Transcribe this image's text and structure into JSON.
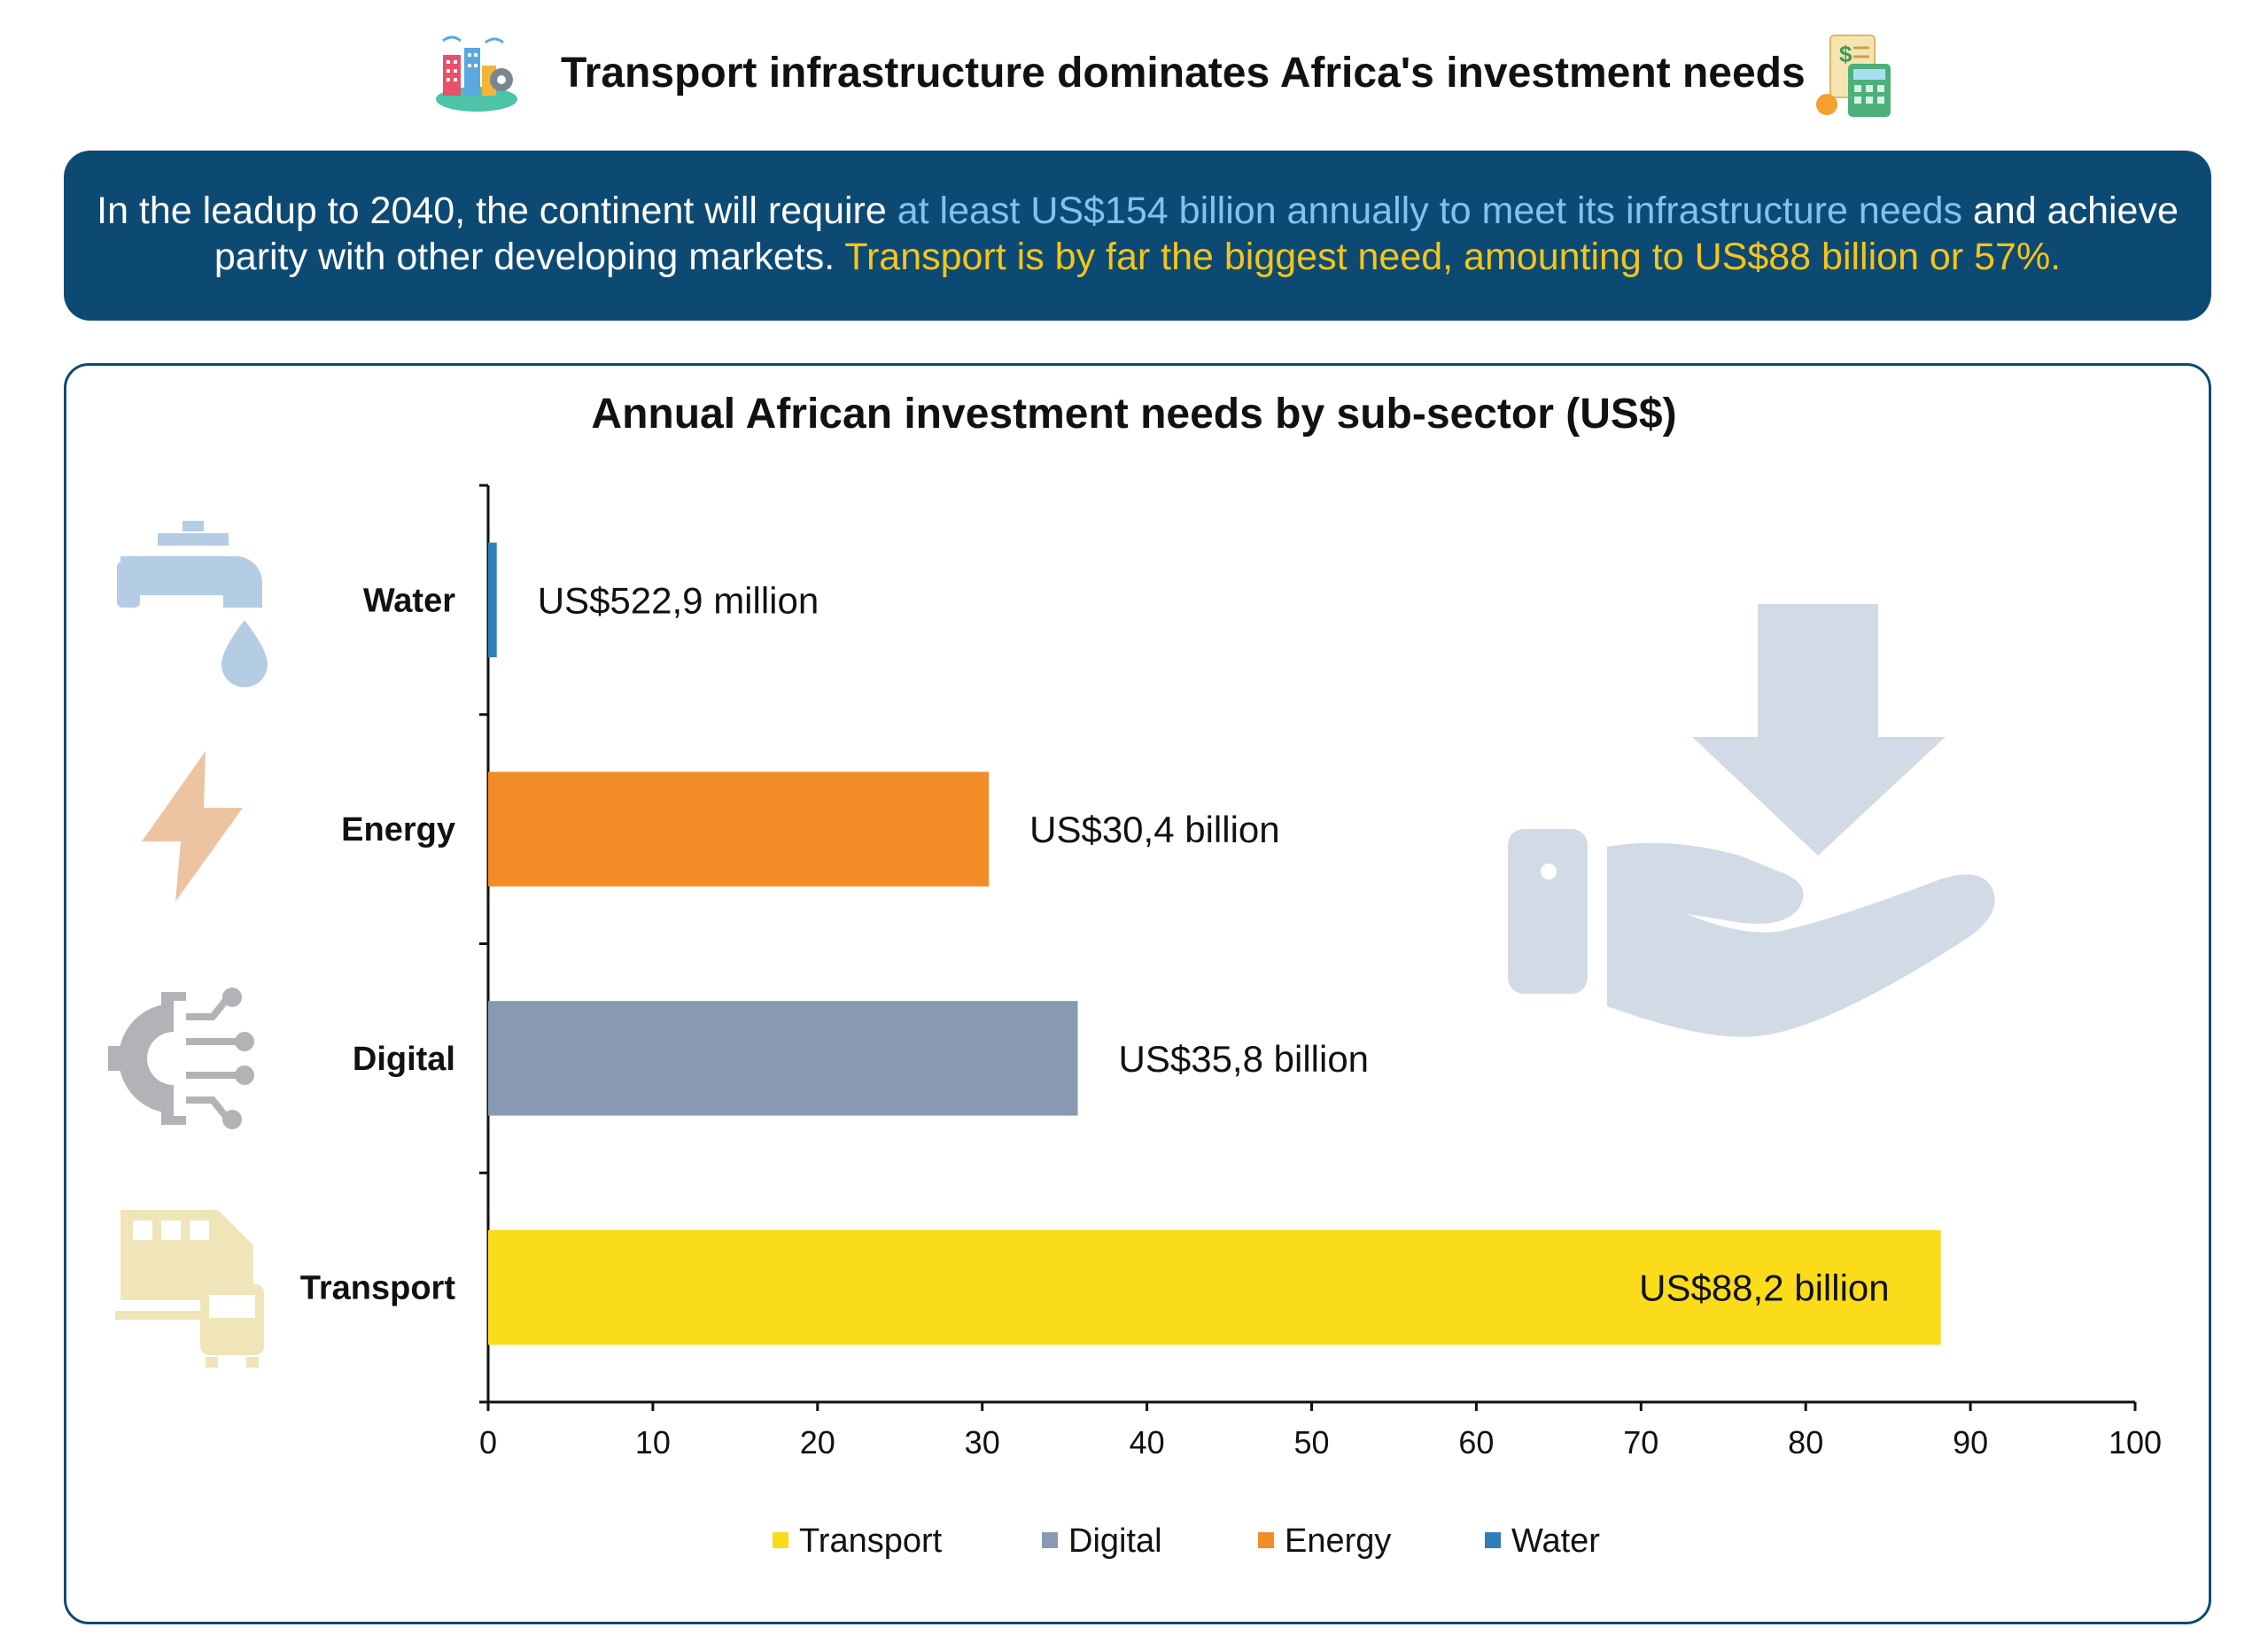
{
  "header": {
    "title": "Transport infrastructure dominates Africa's investment needs",
    "left_icon": "smart-city-icon",
    "right_icon": "budget-calculator-icon"
  },
  "banner": {
    "part1": "In the leadup to 2040, the continent will require ",
    "highlight1": "at least US$154 billion annually to meet its infrastructure needs",
    "part2": " and achieve parity with other developing markets. ",
    "highlight2": "Transport is by far the biggest need, amounting to US$88 billion or 57%.",
    "background_color": "#0d4a73",
    "highlight1_color": "#7fc3f0",
    "highlight2_color": "#f5c518"
  },
  "chart_data": {
    "type": "bar",
    "orientation": "horizontal",
    "title": "Annual African investment needs by sub-sector (US$)",
    "categories": [
      "Water",
      "Energy",
      "Digital",
      "Transport"
    ],
    "values": [
      0.5229,
      30.4,
      35.8,
      88.2
    ],
    "data_labels": [
      "US$522,9 million",
      "US$30,4 billion",
      "US$35,8 billion",
      "US$88,2 billion"
    ],
    "colors": [
      "#2e7fb8",
      "#f28c28",
      "#8899b2",
      "#fbdc1b"
    ],
    "category_icons": [
      "water-tap-icon",
      "lightning-bolt-icon",
      "digital-gear-icon",
      "train-bus-icon"
    ],
    "xlim": [
      0,
      100
    ],
    "xticks": [
      0,
      10,
      20,
      30,
      40,
      50,
      60,
      70,
      80,
      90,
      100
    ],
    "grid": false,
    "legend": {
      "placement": "bottom",
      "entries": [
        "Transport",
        "Digital",
        "Energy",
        "Water"
      ],
      "colors": [
        "#fbdc1b",
        "#8899b2",
        "#f28c28",
        "#2e7fb8"
      ]
    },
    "decoration_icon": "hand-receiving-money-icon"
  }
}
